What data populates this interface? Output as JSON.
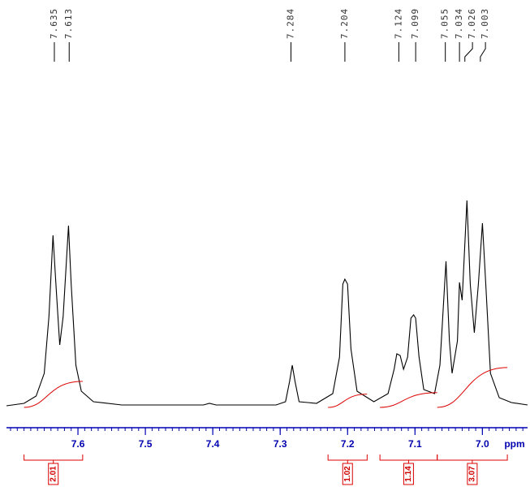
{
  "chart_data": {
    "type": "line",
    "x": [
      7.706,
      7.68,
      7.662,
      7.65,
      7.643,
      7.637,
      7.632,
      7.627,
      7.622,
      7.614,
      7.61,
      7.603,
      7.595,
      7.577,
      7.535,
      7.414,
      7.405,
      7.395,
      7.306,
      7.292,
      7.286,
      7.282,
      7.278,
      7.272,
      7.246,
      7.222,
      7.212,
      7.207,
      7.204,
      7.2,
      7.195,
      7.186,
      7.161,
      7.14,
      7.131,
      7.127,
      7.122,
      7.117,
      7.111,
      7.106,
      7.102,
      7.099,
      7.094,
      7.087,
      7.071,
      7.063,
      7.054,
      7.049,
      7.045,
      7.037,
      7.034,
      7.03,
      7.023,
      7.018,
      7.012,
      7.006,
      7.0,
      6.995,
      6.988,
      6.975,
      6.957,
      6.933
    ],
    "values": [
      0,
      3,
      12,
      40,
      110,
      210,
      140,
      75,
      110,
      222,
      150,
      50,
      18,
      5,
      1,
      1,
      3,
      1,
      1,
      5,
      30,
      50,
      30,
      5,
      3,
      15,
      60,
      150,
      156,
      150,
      70,
      18,
      5,
      15,
      45,
      64,
      62,
      45,
      60,
      108,
      112,
      108,
      60,
      20,
      15,
      50,
      178,
      80,
      40,
      80,
      152,
      130,
      253,
      150,
      90,
      150,
      225,
      150,
      40,
      10,
      4,
      1
    ],
    "color": "#000000",
    "xlim": [
      7.706,
      6.933
    ],
    "ylim": [
      0,
      500
    ],
    "xticks": [
      7.6,
      7.5,
      7.4,
      7.3,
      7.2,
      7.1,
      {
        "value": 7,
        "label": "7.0"
      }
    ],
    "x_unit": "ppm",
    "peak_labels": [
      7.635,
      7.613,
      7.284,
      7.204,
      7.124,
      7.099,
      7.055,
      7.034,
      7.026,
      7.003
    ],
    "integrals": [
      {
        "value": 2.01,
        "range": [
          7.68,
          7.593
        ]
      },
      {
        "value": 1.02,
        "range": [
          7.229,
          7.171
        ]
      },
      {
        "value": 1.14,
        "range": [
          7.152,
          7.067
        ]
      },
      {
        "value": 3.07,
        "range": [
          7.067,
          6.963
        ]
      }
    ],
    "integral_color": "#dd0000",
    "axis_color": "#0000b0"
  }
}
